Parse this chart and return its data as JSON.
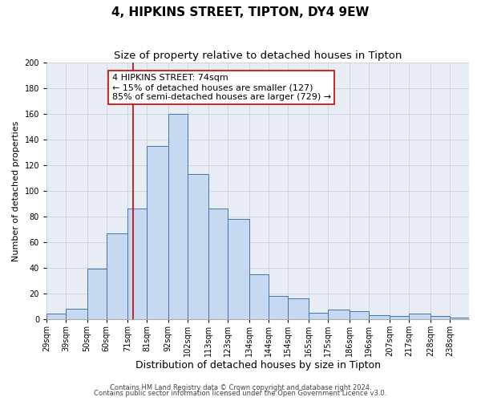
{
  "title": "4, HIPKINS STREET, TIPTON, DY4 9EW",
  "subtitle": "Size of property relative to detached houses in Tipton",
  "xlabel": "Distribution of detached houses by size in Tipton",
  "ylabel": "Number of detached properties",
  "bin_labels": [
    "29sqm",
    "39sqm",
    "50sqm",
    "60sqm",
    "71sqm",
    "81sqm",
    "92sqm",
    "102sqm",
    "113sqm",
    "123sqm",
    "134sqm",
    "144sqm",
    "154sqm",
    "165sqm",
    "175sqm",
    "186sqm",
    "196sqm",
    "207sqm",
    "217sqm",
    "228sqm",
    "238sqm"
  ],
  "bin_left_edges": [
    29,
    39,
    50,
    60,
    71,
    81,
    92,
    102,
    113,
    123,
    134,
    144,
    154,
    165,
    175,
    186,
    196,
    207,
    217,
    228,
    238
  ],
  "bin_widths": [
    10,
    11,
    10,
    11,
    10,
    11,
    10,
    11,
    10,
    11,
    10,
    10,
    11,
    10,
    11,
    10,
    11,
    10,
    11,
    10,
    10
  ],
  "bar_heights": [
    4,
    8,
    39,
    67,
    86,
    135,
    160,
    113,
    86,
    78,
    35,
    18,
    16,
    5,
    7,
    6,
    3,
    2,
    4,
    2,
    1
  ],
  "bar_color": "#c6d9f1",
  "bar_edge_color": "#4472a8",
  "bar_linewidth": 0.7,
  "vline_x": 74,
  "vline_color": "#cc0000",
  "vline_linewidth": 1.2,
  "annotation_line1": "4 HIPKINS STREET: 74sqm",
  "annotation_line2": "← 15% of detached houses are smaller (127)",
  "annotation_line3": "85% of semi-detached houses are larger (729) →",
  "annotation_box_edgecolor": "#cc0000",
  "annotation_box_facecolor": "white",
  "ylim": [
    0,
    200
  ],
  "yticks": [
    0,
    20,
    40,
    60,
    80,
    100,
    120,
    140,
    160,
    180,
    200
  ],
  "grid_color": "#c8d0e0",
  "plot_background": "#e8edf5",
  "footer_line1": "Contains HM Land Registry data © Crown copyright and database right 2024.",
  "footer_line2": "Contains public sector information licensed under the Open Government Licence v3.0.",
  "title_fontsize": 11,
  "subtitle_fontsize": 9.5,
  "xlabel_fontsize": 9,
  "ylabel_fontsize": 8,
  "tick_fontsize": 7,
  "annotation_fontsize": 8,
  "footer_fontsize": 6
}
